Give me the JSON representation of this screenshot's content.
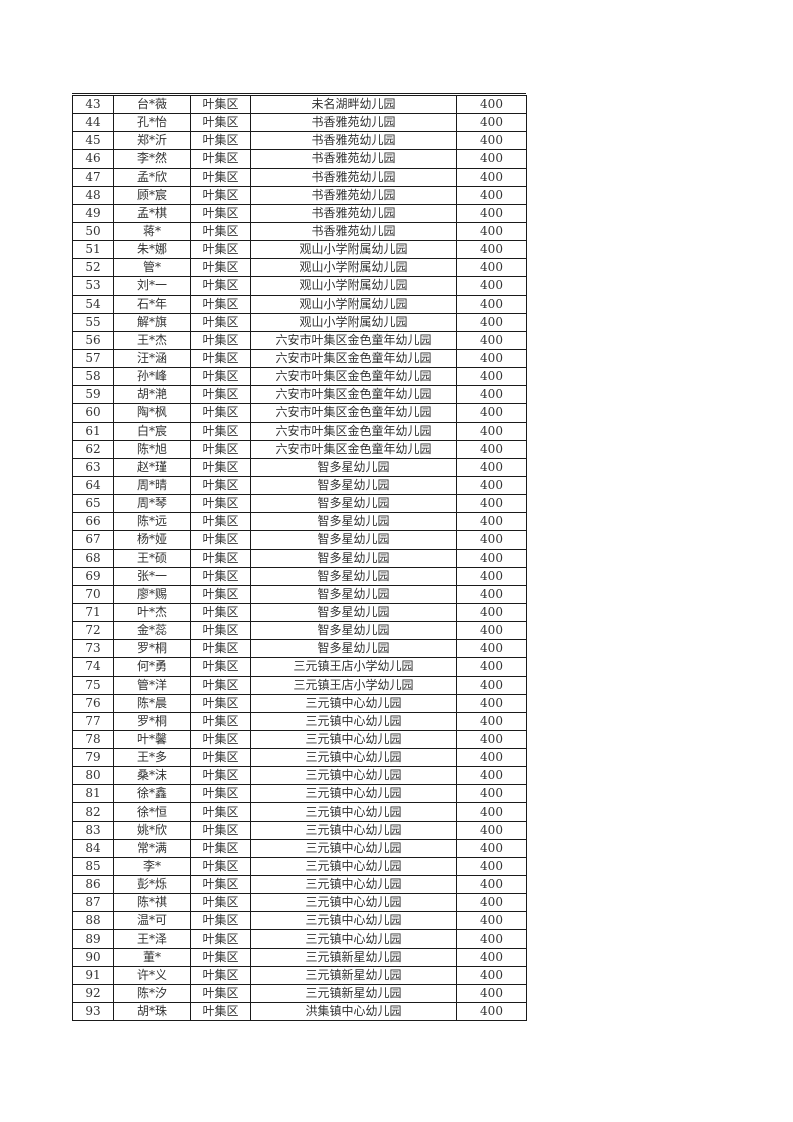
{
  "document": {
    "type_label": "subsidy-roster-page",
    "border_color": "#1a1a1a",
    "text_color": "#333333",
    "background_color": "#ffffff"
  },
  "table": {
    "columns": [
      "row_number",
      "student_name",
      "district",
      "kindergarten",
      "amount"
    ],
    "rows": [
      [
        "43",
        "台*薇",
        "叶集区",
        "未名湖畔幼儿园",
        "400"
      ],
      [
        "44",
        "孔*怡",
        "叶集区",
        "书香雅苑幼儿园",
        "400"
      ],
      [
        "45",
        "郑*沂",
        "叶集区",
        "书香雅苑幼儿园",
        "400"
      ],
      [
        "46",
        "李*然",
        "叶集区",
        "书香雅苑幼儿园",
        "400"
      ],
      [
        "47",
        "孟*欣",
        "叶集区",
        "书香雅苑幼儿园",
        "400"
      ],
      [
        "48",
        "顾*宸",
        "叶集区",
        "书香雅苑幼儿园",
        "400"
      ],
      [
        "49",
        "孟*棋",
        "叶集区",
        "书香雅苑幼儿园",
        "400"
      ],
      [
        "50",
        "蒋*",
        "叶集区",
        "书香雅苑幼儿园",
        "400"
      ],
      [
        "51",
        "朱*娜",
        "叶集区",
        "观山小学附属幼儿园",
        "400"
      ],
      [
        "52",
        "管*",
        "叶集区",
        "观山小学附属幼儿园",
        "400"
      ],
      [
        "53",
        "刘*一",
        "叶集区",
        "观山小学附属幼儿园",
        "400"
      ],
      [
        "54",
        "石*年",
        "叶集区",
        "观山小学附属幼儿园",
        "400"
      ],
      [
        "55",
        "解*旗",
        "叶集区",
        "观山小学附属幼儿园",
        "400"
      ],
      [
        "56",
        "王*杰",
        "叶集区",
        "六安市叶集区金色童年幼儿园",
        "400"
      ],
      [
        "57",
        "汪*涵",
        "叶集区",
        "六安市叶集区金色童年幼儿园",
        "400"
      ],
      [
        "58",
        "孙*峰",
        "叶集区",
        "六安市叶集区金色童年幼儿园",
        "400"
      ],
      [
        "59",
        "胡*滟",
        "叶集区",
        "六安市叶集区金色童年幼儿园",
        "400"
      ],
      [
        "60",
        "陶*枫",
        "叶集区",
        "六安市叶集区金色童年幼儿园",
        "400"
      ],
      [
        "61",
        "白*宸",
        "叶集区",
        "六安市叶集区金色童年幼儿园",
        "400"
      ],
      [
        "62",
        "陈*旭",
        "叶集区",
        "六安市叶集区金色童年幼儿园",
        "400"
      ],
      [
        "63",
        "赵*瑾",
        "叶集区",
        "智多星幼儿园",
        "400"
      ],
      [
        "64",
        "周*晴",
        "叶集区",
        "智多星幼儿园",
        "400"
      ],
      [
        "65",
        "周*琴",
        "叶集区",
        "智多星幼儿园",
        "400"
      ],
      [
        "66",
        "陈*远",
        "叶集区",
        "智多星幼儿园",
        "400"
      ],
      [
        "67",
        "杨*娅",
        "叶集区",
        "智多星幼儿园",
        "400"
      ],
      [
        "68",
        "王*硕",
        "叶集区",
        "智多星幼儿园",
        "400"
      ],
      [
        "69",
        "张*一",
        "叶集区",
        "智多星幼儿园",
        "400"
      ],
      [
        "70",
        "廖*赐",
        "叶集区",
        "智多星幼儿园",
        "400"
      ],
      [
        "71",
        "叶*杰",
        "叶集区",
        "智多星幼儿园",
        "400"
      ],
      [
        "72",
        "金*蕊",
        "叶集区",
        "智多星幼儿园",
        "400"
      ],
      [
        "73",
        "罗*桐",
        "叶集区",
        "智多星幼儿园",
        "400"
      ],
      [
        "74",
        "何*勇",
        "叶集区",
        "三元镇王店小学幼儿园",
        "400"
      ],
      [
        "75",
        "管*洋",
        "叶集区",
        "三元镇王店小学幼儿园",
        "400"
      ],
      [
        "76",
        "陈*晨",
        "叶集区",
        "三元镇中心幼儿园",
        "400"
      ],
      [
        "77",
        "罗*桐",
        "叶集区",
        "三元镇中心幼儿园",
        "400"
      ],
      [
        "78",
        "叶*馨",
        "叶集区",
        "三元镇中心幼儿园",
        "400"
      ],
      [
        "79",
        "王*多",
        "叶集区",
        "三元镇中心幼儿园",
        "400"
      ],
      [
        "80",
        "桑*沫",
        "叶集区",
        "三元镇中心幼儿园",
        "400"
      ],
      [
        "81",
        "徐*鑫",
        "叶集区",
        "三元镇中心幼儿园",
        "400"
      ],
      [
        "82",
        "徐*恒",
        "叶集区",
        "三元镇中心幼儿园",
        "400"
      ],
      [
        "83",
        "姚*欣",
        "叶集区",
        "三元镇中心幼儿园",
        "400"
      ],
      [
        "84",
        "常*满",
        "叶集区",
        "三元镇中心幼儿园",
        "400"
      ],
      [
        "85",
        "李*",
        "叶集区",
        "三元镇中心幼儿园",
        "400"
      ],
      [
        "86",
        "彭*烁",
        "叶集区",
        "三元镇中心幼儿园",
        "400"
      ],
      [
        "87",
        "陈*祺",
        "叶集区",
        "三元镇中心幼儿园",
        "400"
      ],
      [
        "88",
        "温*可",
        "叶集区",
        "三元镇中心幼儿园",
        "400"
      ],
      [
        "89",
        "王*泽",
        "叶集区",
        "三元镇中心幼儿园",
        "400"
      ],
      [
        "90",
        "董*",
        "叶集区",
        "三元镇新星幼儿园",
        "400"
      ],
      [
        "91",
        "许*义",
        "叶集区",
        "三元镇新星幼儿园",
        "400"
      ],
      [
        "92",
        "陈*汐",
        "叶集区",
        "三元镇新星幼儿园",
        "400"
      ],
      [
        "93",
        "胡*珠",
        "叶集区",
        "洪集镇中心幼儿园",
        "400"
      ]
    ]
  }
}
